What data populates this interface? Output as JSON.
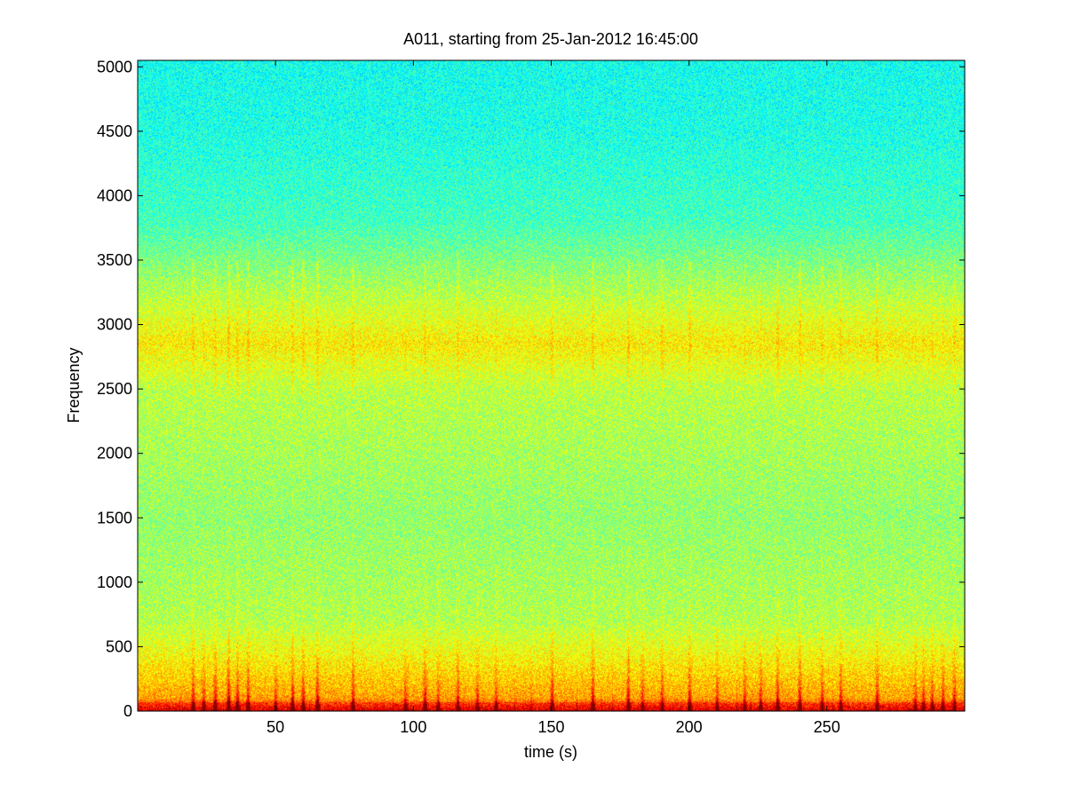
{
  "chart_data": {
    "type": "heatmap",
    "subtype": "spectrogram",
    "title": "A011, starting from 25-Jan-2012 16:45:00",
    "xlabel": "time (s)",
    "ylabel": "Frequency",
    "xlim": [
      0,
      300
    ],
    "ylim": [
      0,
      5050
    ],
    "xticks": [
      50,
      100,
      150,
      200,
      250
    ],
    "yticks": [
      0,
      500,
      1000,
      1500,
      2000,
      2500,
      3000,
      3500,
      4000,
      4500,
      5000
    ],
    "grid": false,
    "legend": "none",
    "colormap": "jet",
    "background_intensity_by_frequency": [
      {
        "frequency": 0,
        "intensity": 0.88
      },
      {
        "frequency": 100,
        "intensity": 0.72
      },
      {
        "frequency": 400,
        "intensity": 0.63
      },
      {
        "frequency": 700,
        "intensity": 0.55
      },
      {
        "frequency": 1500,
        "intensity": 0.52
      },
      {
        "frequency": 2500,
        "intensity": 0.56
      },
      {
        "frequency": 2850,
        "intensity": 0.64
      },
      {
        "frequency": 3200,
        "intensity": 0.56
      },
      {
        "frequency": 3800,
        "intensity": 0.44
      },
      {
        "frequency": 4500,
        "intensity": 0.4
      },
      {
        "frequency": 5050,
        "intensity": 0.39
      }
    ],
    "bright_band": {
      "frequency_min": 2700,
      "frequency_max": 3050
    },
    "transient_events_time_s": [
      20,
      24,
      28,
      33,
      36,
      40,
      50,
      56,
      60,
      65,
      78,
      97,
      104,
      109,
      116,
      123,
      130,
      150,
      165,
      178,
      183,
      190,
      200,
      210,
      220,
      226,
      232,
      240,
      248,
      255,
      268,
      282,
      285,
      288,
      292,
      296
    ]
  }
}
